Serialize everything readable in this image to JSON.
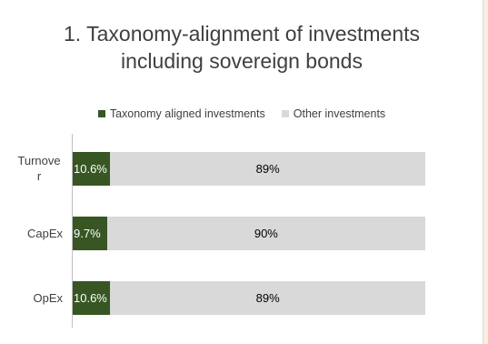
{
  "chart_data": {
    "type": "bar",
    "orientation": "horizontal",
    "stacked": true,
    "title_lines": [
      "1. Taxonomy-alignment of investments",
      "including sovereign bonds"
    ],
    "categories": [
      "Turnove\nr",
      "CapEx",
      "OpEx"
    ],
    "series": [
      {
        "name": "Taxonomy aligned investments",
        "color": "#375623",
        "values": [
          10.6,
          9.7,
          10.6
        ],
        "labels": [
          "10.6%",
          "9.7%",
          "10.6%"
        ],
        "label_color": "#ffffff"
      },
      {
        "name": "Other investments",
        "color": "#d9d9d9",
        "values": [
          89,
          90,
          89
        ],
        "labels": [
          "89%",
          "90%",
          "89%"
        ],
        "label_color": "#000000"
      }
    ],
    "xlim": [
      0,
      100
    ],
    "grid": false,
    "legend_position": "top"
  }
}
